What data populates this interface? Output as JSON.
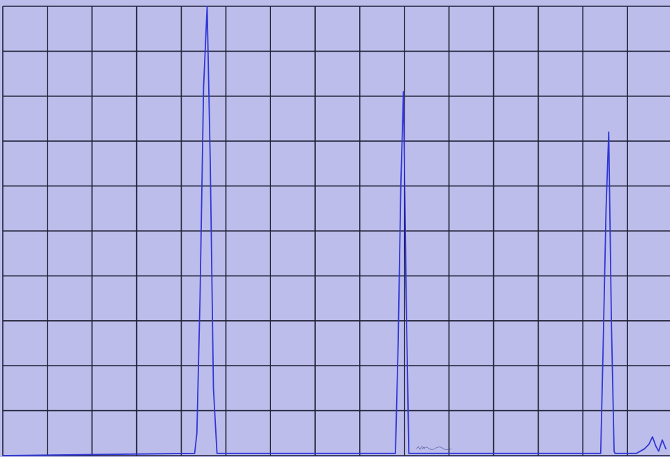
{
  "chart_data": {
    "type": "line",
    "title": "",
    "xlabel": "",
    "ylabel": "",
    "xlim": [
      0,
      15
    ],
    "ylim": [
      0,
      10
    ],
    "grid": true,
    "grid_divisions": {
      "x": 15,
      "y": 10
    },
    "series": [
      {
        "color": "#2f36d6",
        "x": [
          0,
          4.3,
          4.35,
          4.42,
          4.5,
          4.58,
          4.65,
          4.72,
          4.8,
          8.8,
          8.86,
          8.92,
          8.98,
          9.04,
          9.1,
          13.4,
          13.45,
          13.52,
          13.58,
          13.64,
          13.7,
          13.72,
          14.2,
          14.38,
          14.48,
          14.56,
          14.64,
          14.7,
          14.78,
          14.86
        ],
        "y": [
          0,
          0.05,
          0.5,
          3.5,
          8.2,
          10.0,
          6.5,
          1.5,
          0.05,
          0.05,
          2.5,
          6.0,
          8.1,
          3.5,
          0.05,
          0.05,
          2.2,
          5.5,
          7.2,
          3.0,
          0.1,
          0.05,
          0.05,
          0.15,
          0.25,
          0.42,
          0.2,
          0.1,
          0.35,
          0.15
        ]
      }
    ],
    "peaks": [
      {
        "x": 4.58,
        "y": 10.0
      },
      {
        "x": 8.98,
        "y": 8.1
      },
      {
        "x": 13.58,
        "y": 7.2
      }
    ],
    "annotations": [],
    "legend": "none"
  },
  "colors": {
    "paper": "#b8b9e8",
    "grid": "#1f1f35",
    "trace": "#2f36d6"
  }
}
